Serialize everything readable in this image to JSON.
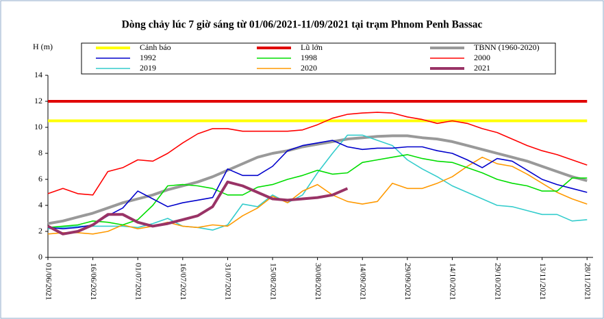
{
  "chart_data": {
    "type": "line",
    "title": "Dòng chảy lúc 7 giờ sáng từ 01/06/2021-11/09/2021 tại trạm Phnom Penh Bassac",
    "y_label": "H (m)",
    "x": [
      "01/06/2021",
      "06/06/2021",
      "11/06/2021",
      "16/06/2021",
      "21/06/2021",
      "26/06/2021",
      "01/07/2021",
      "06/07/2021",
      "11/07/2021",
      "16/07/2021",
      "21/07/2021",
      "26/07/2021",
      "31/07/2021",
      "05/08/2021",
      "10/08/2021",
      "15/08/2021",
      "20/08/2021",
      "25/08/2021",
      "30/08/2021",
      "04/09/2021",
      "09/09/2021",
      "14/09/2021",
      "19/09/2021",
      "24/09/2021",
      "29/09/2021",
      "04/10/2021",
      "09/10/2021",
      "14/10/2021",
      "19/10/2021",
      "24/10/2021",
      "29/10/2021",
      "03/11/2021",
      "08/11/2021",
      "13/11/2021",
      "18/11/2021",
      "23/11/2021",
      "28/11/2021"
    ],
    "xlim": [
      "01/06/2021",
      "30/11/2021"
    ],
    "xticks": [
      "01/06/2021",
      "16/06/2021",
      "01/07/2021",
      "16/07/2021",
      "31/07/2021",
      "15/08/2021",
      "30/08/2021",
      "14/09/2021",
      "29/09/2021",
      "14/10/2021",
      "29/10/2021",
      "13/11/2021",
      "28/11/2021"
    ],
    "ylim": [
      0,
      14
    ],
    "yticks": [
      0,
      2,
      4,
      6,
      8,
      10,
      12,
      14
    ],
    "grid": false,
    "series": [
      {
        "name": "Cảnh báo",
        "color": "#ffff00",
        "values": [
          10.5,
          10.5,
          10.5,
          10.5,
          10.5,
          10.5,
          10.5,
          10.5,
          10.5,
          10.5,
          10.5,
          10.5,
          10.5,
          10.5,
          10.5,
          10.5,
          10.5,
          10.5,
          10.5,
          10.5,
          10.5,
          10.5,
          10.5,
          10.5,
          10.5,
          10.5,
          10.5,
          10.5,
          10.5,
          10.5,
          10.5,
          10.5,
          10.5,
          10.5,
          10.5,
          10.5,
          10.5
        ]
      },
      {
        "name": "Lũ lớn",
        "color": "#e00000",
        "values": [
          12,
          12,
          12,
          12,
          12,
          12,
          12,
          12,
          12,
          12,
          12,
          12,
          12,
          12,
          12,
          12,
          12,
          12,
          12,
          12,
          12,
          12,
          12,
          12,
          12,
          12,
          12,
          12,
          12,
          12,
          12,
          12,
          12,
          12,
          12,
          12,
          12
        ]
      },
      {
        "name": "TBNN (1960-2020)",
        "color": "#999999",
        "values": [
          2.6,
          2.8,
          3.1,
          3.4,
          3.8,
          4.2,
          4.5,
          4.8,
          5.2,
          5.5,
          5.8,
          6.2,
          6.7,
          7.2,
          7.7,
          8.0,
          8.2,
          8.5,
          8.7,
          8.9,
          9.1,
          9.2,
          9.3,
          9.35,
          9.35,
          9.2,
          9.1,
          8.9,
          8.6,
          8.3,
          8.0,
          7.7,
          7.4,
          7.0,
          6.6,
          6.2,
          5.9
        ]
      },
      {
        "name": "1992",
        "color": "#0000cc",
        "values": [
          2.3,
          2.2,
          2.3,
          2.5,
          3.2,
          3.8,
          5.1,
          4.5,
          3.9,
          4.2,
          4.4,
          4.6,
          6.8,
          6.3,
          6.3,
          7.0,
          8.2,
          8.6,
          8.8,
          9.0,
          8.5,
          8.3,
          8.4,
          8.4,
          8.5,
          8.5,
          8.2,
          8.0,
          7.5,
          6.9,
          7.6,
          7.4,
          6.7,
          6.0,
          5.6,
          5.3,
          5.0
        ]
      },
      {
        "name": "1998",
        "color": "#00dd00",
        "values": [
          2.3,
          2.4,
          2.5,
          2.8,
          2.7,
          2.5,
          2.9,
          4.0,
          5.5,
          5.6,
          5.5,
          5.3,
          4.8,
          4.8,
          5.4,
          5.6,
          6.0,
          6.3,
          6.7,
          6.4,
          6.5,
          7.3,
          7.5,
          7.7,
          7.9,
          7.6,
          7.4,
          7.3,
          6.9,
          6.5,
          6.0,
          5.7,
          5.5,
          5.1,
          5.1,
          6.1,
          6.1
        ]
      },
      {
        "name": "2000",
        "color": "#ff0000",
        "values": [
          4.9,
          5.3,
          4.9,
          4.8,
          6.6,
          6.9,
          7.5,
          7.4,
          8.0,
          8.8,
          9.5,
          9.9,
          9.9,
          9.7,
          9.7,
          9.7,
          9.7,
          9.8,
          10.2,
          10.7,
          11.0,
          11.1,
          11.15,
          11.1,
          10.8,
          10.6,
          10.3,
          10.5,
          10.3,
          9.9,
          9.6,
          9.1,
          8.6,
          8.2,
          7.9,
          7.5,
          7.1
        ]
      },
      {
        "name": "2019",
        "color": "#33cccc",
        "values": [
          2.2,
          2.3,
          2.4,
          2.4,
          2.4,
          2.4,
          2.3,
          2.6,
          3.0,
          2.4,
          2.3,
          2.1,
          2.5,
          4.1,
          3.9,
          4.8,
          4.2,
          4.8,
          6.5,
          8.0,
          9.4,
          9.4,
          9.0,
          8.6,
          7.5,
          6.8,
          6.2,
          5.5,
          5.0,
          4.5,
          4.0,
          3.9,
          3.6,
          3.3,
          3.3,
          2.8,
          2.9
        ]
      },
      {
        "name": "2020",
        "color": "#ff9900",
        "values": [
          1.8,
          1.9,
          1.9,
          1.8,
          2.0,
          2.5,
          2.2,
          2.4,
          2.7,
          2.4,
          2.3,
          2.5,
          2.4,
          3.2,
          3.8,
          4.7,
          4.2,
          5.1,
          5.6,
          4.8,
          4.3,
          4.1,
          4.3,
          5.7,
          5.3,
          5.3,
          5.7,
          6.2,
          7.0,
          7.7,
          7.2,
          7.0,
          6.4,
          5.7,
          5.0,
          4.5,
          4.1
        ]
      },
      {
        "name": "2021",
        "color": "#993366",
        "values": [
          2.4,
          1.8,
          2.0,
          2.5,
          3.3,
          3.3,
          2.7,
          2.4,
          2.6,
          2.9,
          3.2,
          3.9,
          5.8,
          5.5,
          5.0,
          4.5,
          4.4,
          4.5,
          4.6,
          4.8,
          5.3,
          null,
          null,
          null,
          null,
          null,
          null,
          null,
          null,
          null,
          null,
          null,
          null,
          null,
          null,
          null,
          null
        ]
      }
    ]
  }
}
